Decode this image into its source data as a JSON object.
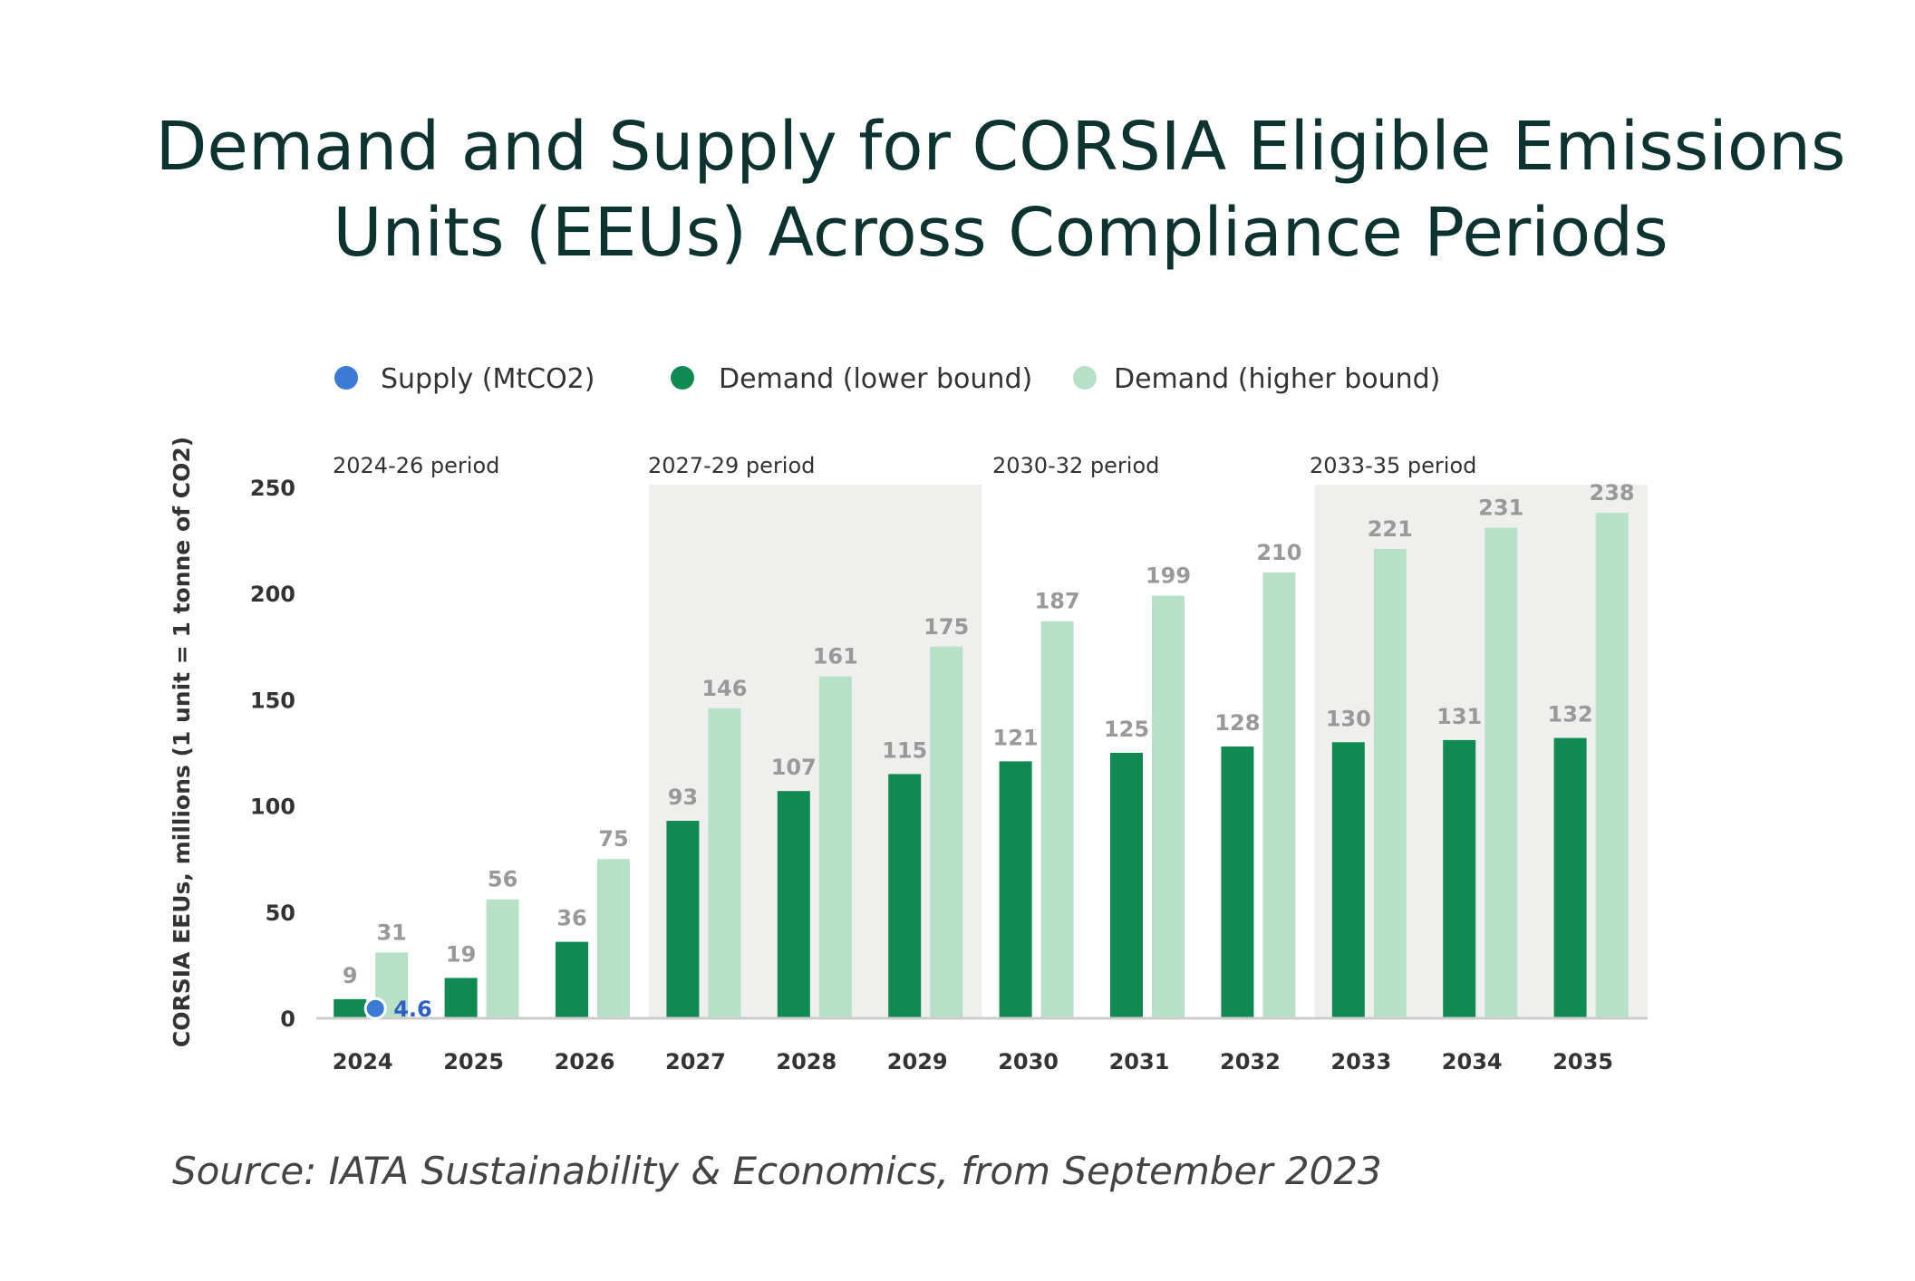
{
  "chart_data": {
    "type": "bar",
    "title": "Demand and Supply for CORSIA Eligible Emissions Units (EEUs) Across Compliance Periods",
    "title_lines": [
      "Demand and Supply for CORSIA Eligible Emissions",
      "Units (EEUs) Across Compliance Periods"
    ],
    "ylabel": "CORSIA EEUs, millions (1 unit = 1 tonne of CO2)",
    "xlabel": "",
    "ylim": [
      0,
      250
    ],
    "yticks": [
      "0",
      "50",
      "100",
      "150",
      "200",
      "250"
    ],
    "grid": false,
    "legend_placement": "top",
    "categories": [
      "2024",
      "2025",
      "2026",
      "2027",
      "2028",
      "2029",
      "2030",
      "2031",
      "2032",
      "2033",
      "2034",
      "2035"
    ],
    "series": [
      {
        "name": "Supply (MtCO2)",
        "color": "#3a7bd5",
        "kind": "point",
        "points": [
          {
            "category": "2024",
            "value": 4.6,
            "label": "4.6"
          }
        ]
      },
      {
        "name": "Demand (lower bound)",
        "color": "#118a52",
        "values": [
          9,
          19,
          36,
          93,
          107,
          115,
          121,
          125,
          128,
          130,
          131,
          132
        ]
      },
      {
        "name": "Demand (higher bound)",
        "color": "#b7e1c6",
        "values": [
          31,
          56,
          75,
          146,
          161,
          175,
          187,
          199,
          210,
          221,
          231,
          238
        ]
      }
    ],
    "periods": [
      {
        "label": "2024-26 period",
        "from": "2024",
        "to": "2026",
        "shaded": false
      },
      {
        "label": "2027-29 period",
        "from": "2027",
        "to": "2029",
        "shaded": true
      },
      {
        "label": "2030-32 period",
        "from": "2030",
        "to": "2032",
        "shaded": false
      },
      {
        "label": "2033-35 period",
        "from": "2033",
        "to": "2035",
        "shaded": true
      }
    ],
    "source": "Source: IATA Sustainability & Economics, from September 2023"
  },
  "colors": {
    "title": "#0d3331",
    "shade": "#efefed",
    "value_label": "#999999",
    "axis": "#cccccc"
  }
}
